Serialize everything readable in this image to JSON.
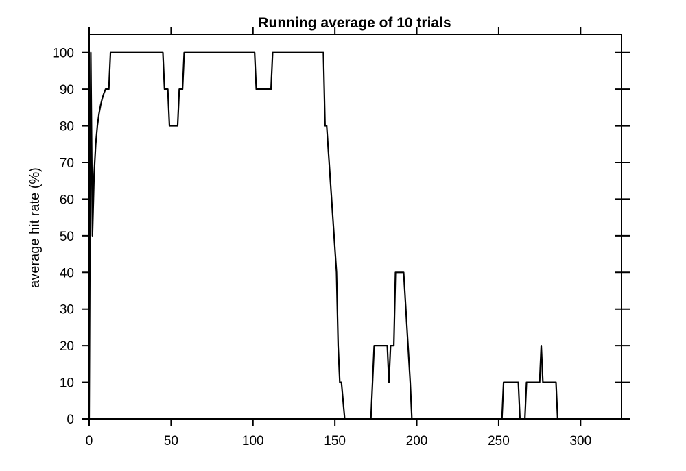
{
  "chart_data": {
    "type": "line",
    "title": "Running average of 10 trials",
    "xlabel": "",
    "ylabel": "average hit rate (%)",
    "xlim": [
      0,
      325
    ],
    "ylim": [
      0,
      105
    ],
    "xticks": [
      0,
      50,
      100,
      150,
      200,
      250,
      300
    ],
    "xtick_labels": [
      "0",
      "50",
      "100",
      "150",
      "200",
      "250",
      "300"
    ],
    "yticks": [
      0,
      10,
      20,
      30,
      40,
      50,
      60,
      70,
      80,
      90,
      100
    ],
    "ytick_labels": [
      "0",
      "10",
      "20",
      "30",
      "40",
      "50",
      "60",
      "70",
      "80",
      "90",
      "100"
    ],
    "grid": false,
    "line_color": "#000000",
    "series": [
      {
        "x": [
          0,
          1,
          2,
          3,
          4,
          5,
          6,
          7,
          8,
          9,
          10,
          11,
          12,
          13,
          45,
          46,
          48,
          49,
          54,
          55,
          57,
          58,
          59,
          101,
          102,
          111,
          112,
          143,
          144,
          145,
          151,
          152,
          153,
          154,
          155,
          156,
          172,
          173,
          174,
          182,
          183,
          184,
          186,
          187,
          191,
          192,
          196,
          197,
          251,
          252,
          253,
          262,
          263,
          264,
          266,
          267,
          268,
          274,
          275,
          276,
          277,
          279,
          285,
          286,
          325
        ],
        "y": [
          0,
          100,
          50,
          66.7,
          75,
          80,
          83.3,
          85.7,
          87.5,
          88.9,
          90,
          90,
          90,
          100,
          100,
          90,
          90,
          80,
          80,
          90,
          90,
          100,
          100,
          100,
          90,
          90,
          100,
          100,
          80,
          80,
          40,
          20,
          10,
          10,
          5,
          0,
          0,
          10,
          20,
          20,
          10,
          20,
          20,
          40,
          40,
          40,
          10,
          0,
          0,
          0,
          10,
          10,
          0,
          0,
          0,
          10,
          10,
          10,
          10,
          20,
          10,
          10,
          10,
          0,
          0
        ]
      }
    ]
  }
}
